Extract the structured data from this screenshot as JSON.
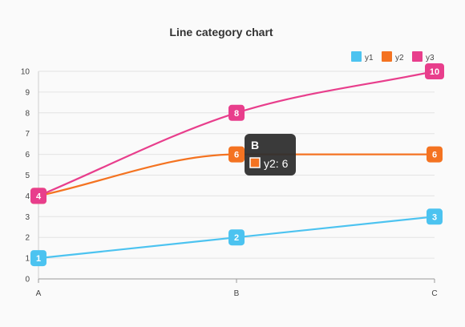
{
  "chart_data": {
    "type": "line",
    "title": "Line category chart",
    "categories": [
      "A",
      "B",
      "C"
    ],
    "ylim": [
      0,
      10
    ],
    "yticks": [
      0,
      1,
      2,
      3,
      4,
      5,
      6,
      7,
      8,
      9,
      10
    ],
    "grid": true,
    "legend_position": "top-right",
    "series": [
      {
        "name": "y1",
        "values": [
          1,
          2,
          3
        ],
        "color": "#4cc3f0",
        "smooth": false
      },
      {
        "name": "y2",
        "values": [
          4,
          6,
          6
        ],
        "color": "#f47321",
        "smooth": true
      },
      {
        "name": "y3",
        "values": [
          4,
          8,
          10
        ],
        "color": "#e83e8c",
        "smooth": true
      }
    ],
    "tooltip": {
      "title": "B",
      "text": "y2: 6",
      "swatch": "#f47321"
    }
  }
}
